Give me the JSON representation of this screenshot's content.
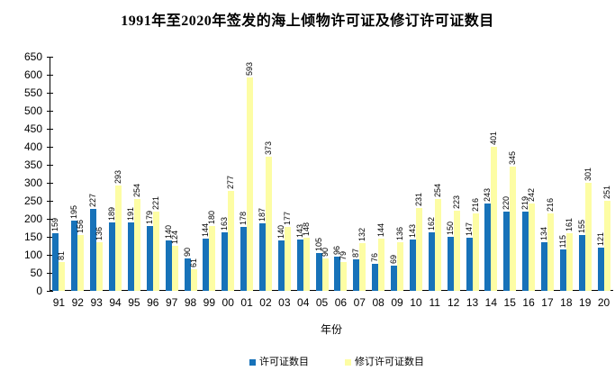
{
  "colors": {
    "permits": "#1772B9",
    "revised": "#FDFDA4",
    "axis": "#000000",
    "text": "#000000",
    "background": "#FFFFFF"
  },
  "chart_data": {
    "type": "bar",
    "title": "1991年至2020年签发的海上倾物许可证及修订许可证数目",
    "xlabel": "年份",
    "ylabel": "",
    "ylim": [
      0,
      650
    ],
    "ytick_step": 50,
    "grid": false,
    "legend_position": "bottom",
    "data_labels": "rotated-90-above-bars",
    "categories": [
      "91",
      "92",
      "93",
      "94",
      "95",
      "96",
      "97",
      "98",
      "99",
      "00",
      "01",
      "02",
      "03",
      "04",
      "05",
      "06",
      "07",
      "08",
      "09",
      "10",
      "11",
      "12",
      "13",
      "14",
      "15",
      "16",
      "17",
      "18",
      "19",
      "20"
    ],
    "series": [
      {
        "name": "许可证数目",
        "color": "#1772B9",
        "values": [
          159,
          195,
          227,
          189,
          191,
          179,
          140,
          90,
          144,
          163,
          178,
          187,
          140,
          143,
          105,
          96,
          87,
          76,
          69,
          143,
          162,
          150,
          147,
          243,
          220,
          219,
          134,
          115,
          155,
          121
        ]
      },
      {
        "name": "修订许可证数目",
        "color": "#FDFDA4",
        "values": [
          81,
          156,
          136,
          293,
          254,
          221,
          124,
          61,
          180,
          277,
          593,
          373,
          177,
          148,
          90,
          79,
          132,
          144,
          136,
          231,
          254,
          223,
          216,
          401,
          345,
          242,
          216,
          161,
          301,
          251
        ]
      }
    ]
  }
}
